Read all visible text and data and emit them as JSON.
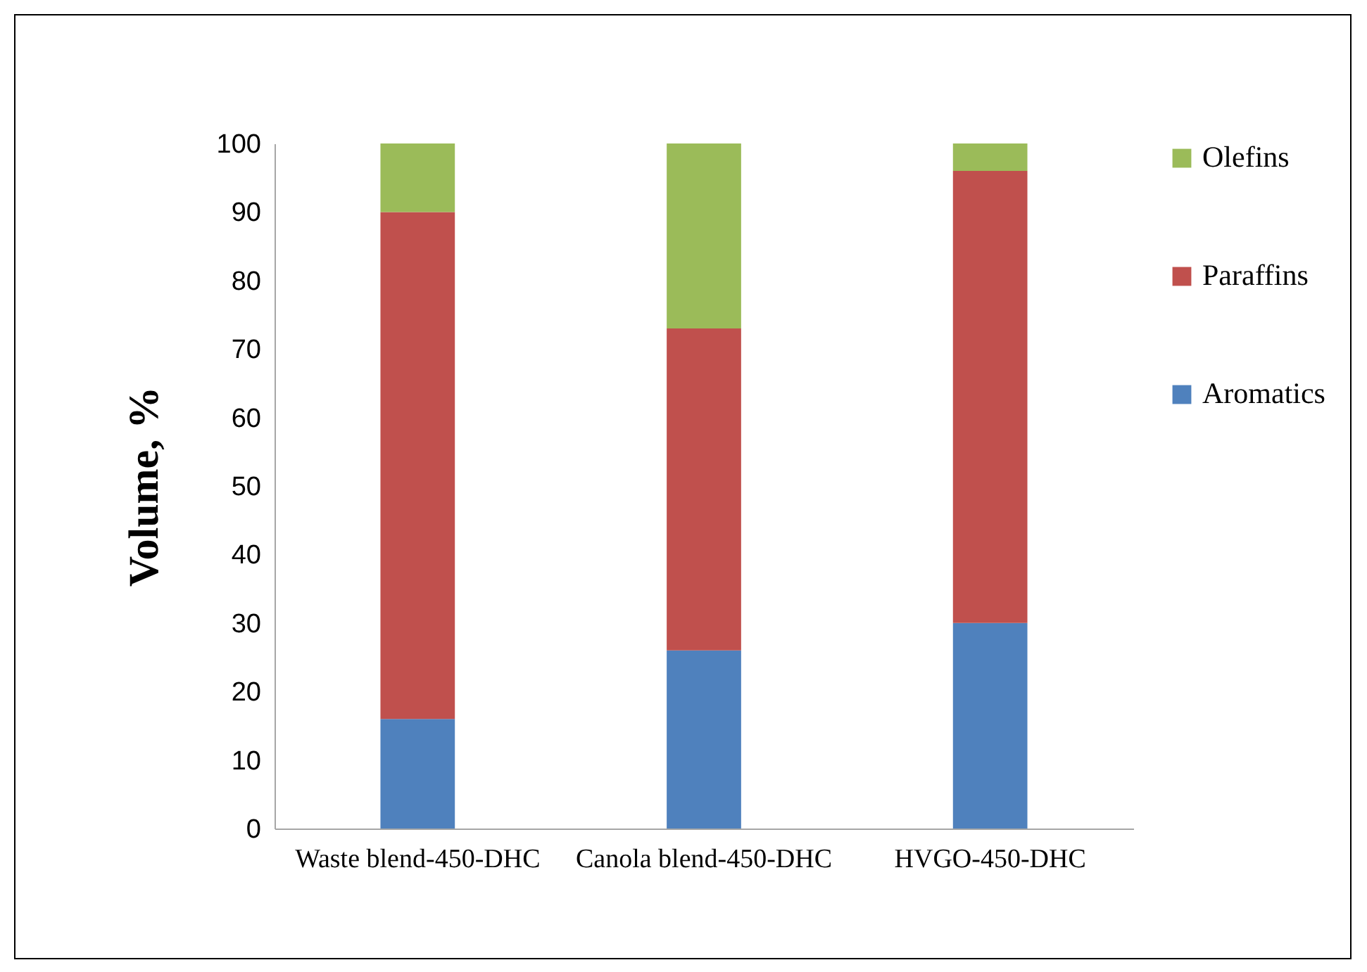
{
  "chart_data": {
    "type": "bar",
    "stacked": true,
    "ylabel": "Volume, %",
    "categories": [
      "Waste blend-450-DHC",
      "Canola blend-450-DHC",
      "HVGO-450-DHC"
    ],
    "series": [
      {
        "name": "Aromatics",
        "color": "#4f81bd",
        "values": [
          16,
          26,
          30
        ]
      },
      {
        "name": "Paraffins",
        "color": "#c0504d",
        "values": [
          74,
          47,
          66
        ]
      },
      {
        "name": "Olefins",
        "color": "#9bbb59",
        "values": [
          10,
          27,
          4
        ]
      }
    ],
    "ylim": [
      0,
      100
    ],
    "yticks": [
      0,
      10,
      20,
      30,
      40,
      50,
      60,
      70,
      80,
      90,
      100
    ],
    "grid": false,
    "legend": "right"
  }
}
